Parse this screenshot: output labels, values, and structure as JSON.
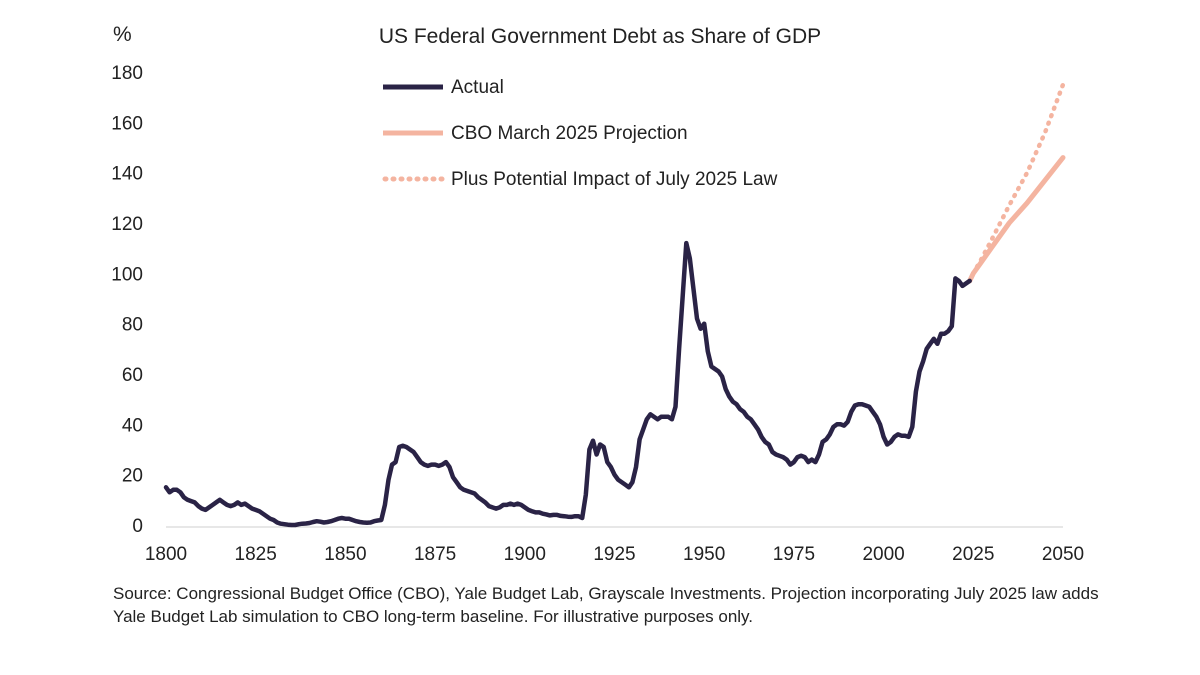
{
  "chart_data": {
    "type": "line",
    "title": "US Federal Government Debt as Share of GDP",
    "unit_label": "%",
    "xlabel": "",
    "ylabel": "",
    "xlim": [
      1800,
      2050
    ],
    "ylim": [
      0,
      180
    ],
    "x_ticks": [
      1800,
      1825,
      1850,
      1875,
      1900,
      1925,
      1950,
      1975,
      2000,
      2025,
      2050
    ],
    "y_ticks": [
      0,
      20,
      40,
      60,
      80,
      100,
      120,
      140,
      160,
      180
    ],
    "grid": false,
    "legend_position": "top-center",
    "series": [
      {
        "name": "Actual",
        "style": "solid",
        "color": "#2a2346",
        "points": [
          [
            1800,
            15
          ],
          [
            1801,
            13
          ],
          [
            1802,
            14
          ],
          [
            1803,
            14
          ],
          [
            1804,
            13
          ],
          [
            1805,
            11
          ],
          [
            1806,
            10
          ],
          [
            1807,
            9.5
          ],
          [
            1808,
            9
          ],
          [
            1809,
            7.5
          ],
          [
            1810,
            6.5
          ],
          [
            1811,
            6
          ],
          [
            1812,
            7
          ],
          [
            1813,
            8
          ],
          [
            1814,
            9
          ],
          [
            1815,
            10
          ],
          [
            1816,
            9
          ],
          [
            1817,
            8
          ],
          [
            1818,
            7.5
          ],
          [
            1819,
            8
          ],
          [
            1820,
            9
          ],
          [
            1821,
            8
          ],
          [
            1822,
            8.5
          ],
          [
            1823,
            7.5
          ],
          [
            1824,
            6.5
          ],
          [
            1825,
            6
          ],
          [
            1826,
            5.5
          ],
          [
            1827,
            4.5
          ],
          [
            1828,
            3.5
          ],
          [
            1829,
            2.5
          ],
          [
            1830,
            2
          ],
          [
            1831,
            1
          ],
          [
            1832,
            0.5
          ],
          [
            1833,
            0.3
          ],
          [
            1834,
            0.1
          ],
          [
            1835,
            0
          ],
          [
            1836,
            0
          ],
          [
            1837,
            0.3
          ],
          [
            1838,
            0.5
          ],
          [
            1839,
            0.6
          ],
          [
            1840,
            0.8
          ],
          [
            1841,
            1.2
          ],
          [
            1842,
            1.5
          ],
          [
            1843,
            1.3
          ],
          [
            1844,
            1
          ],
          [
            1845,
            1.2
          ],
          [
            1846,
            1.5
          ],
          [
            1847,
            2
          ],
          [
            1848,
            2.5
          ],
          [
            1849,
            2.8
          ],
          [
            1850,
            2.5
          ],
          [
            1851,
            2.5
          ],
          [
            1852,
            2
          ],
          [
            1853,
            1.5
          ],
          [
            1854,
            1.2
          ],
          [
            1855,
            1
          ],
          [
            1856,
            0.9
          ],
          [
            1857,
            1
          ],
          [
            1858,
            1.5
          ],
          [
            1859,
            1.8
          ],
          [
            1860,
            2
          ],
          [
            1861,
            8
          ],
          [
            1862,
            18
          ],
          [
            1863,
            24
          ],
          [
            1864,
            25
          ],
          [
            1865,
            31
          ],
          [
            1866,
            31.5
          ],
          [
            1867,
            31
          ],
          [
            1868,
            30
          ],
          [
            1869,
            29
          ],
          [
            1870,
            27
          ],
          [
            1871,
            25
          ],
          [
            1872,
            24
          ],
          [
            1873,
            23.5
          ],
          [
            1874,
            24
          ],
          [
            1875,
            24
          ],
          [
            1876,
            23.5
          ],
          [
            1877,
            24
          ],
          [
            1878,
            25
          ],
          [
            1879,
            23
          ],
          [
            1880,
            19
          ],
          [
            1881,
            17
          ],
          [
            1882,
            15
          ],
          [
            1883,
            14
          ],
          [
            1884,
            13.5
          ],
          [
            1885,
            13
          ],
          [
            1886,
            12.5
          ],
          [
            1887,
            11
          ],
          [
            1888,
            10
          ],
          [
            1889,
            9
          ],
          [
            1890,
            7.5
          ],
          [
            1891,
            7
          ],
          [
            1892,
            6.5
          ],
          [
            1893,
            7
          ],
          [
            1894,
            8
          ],
          [
            1895,
            8
          ],
          [
            1896,
            8.5
          ],
          [
            1897,
            8
          ],
          [
            1898,
            8.5
          ],
          [
            1899,
            8
          ],
          [
            1900,
            7
          ],
          [
            1901,
            6
          ],
          [
            1902,
            5.5
          ],
          [
            1903,
            5
          ],
          [
            1904,
            5
          ],
          [
            1905,
            4.5
          ],
          [
            1906,
            4.2
          ],
          [
            1907,
            3.8
          ],
          [
            1908,
            4
          ],
          [
            1909,
            4
          ],
          [
            1910,
            3.6
          ],
          [
            1911,
            3.5
          ],
          [
            1912,
            3.3
          ],
          [
            1913,
            3.2
          ],
          [
            1914,
            3.5
          ],
          [
            1915,
            3.5
          ],
          [
            1916,
            2.8
          ],
          [
            1917,
            12
          ],
          [
            1918,
            30
          ],
          [
            1919,
            33.5
          ],
          [
            1920,
            28
          ],
          [
            1921,
            32
          ],
          [
            1922,
            31
          ],
          [
            1923,
            25
          ],
          [
            1924,
            23
          ],
          [
            1925,
            20
          ],
          [
            1926,
            18
          ],
          [
            1927,
            17
          ],
          [
            1928,
            16
          ],
          [
            1929,
            15
          ],
          [
            1930,
            17
          ],
          [
            1931,
            23
          ],
          [
            1932,
            34
          ],
          [
            1933,
            38
          ],
          [
            1934,
            42
          ],
          [
            1935,
            44
          ],
          [
            1936,
            43
          ],
          [
            1937,
            42
          ],
          [
            1938,
            43
          ],
          [
            1939,
            43
          ],
          [
            1940,
            43
          ],
          [
            1941,
            42
          ],
          [
            1942,
            47
          ],
          [
            1943,
            70
          ],
          [
            1944,
            91
          ],
          [
            1945,
            112
          ],
          [
            1946,
            106
          ],
          [
            1947,
            94
          ],
          [
            1948,
            82
          ],
          [
            1949,
            78
          ],
          [
            1950,
            80
          ],
          [
            1951,
            69
          ],
          [
            1952,
            63
          ],
          [
            1953,
            62
          ],
          [
            1954,
            61
          ],
          [
            1955,
            59
          ],
          [
            1956,
            54
          ],
          [
            1957,
            51
          ],
          [
            1958,
            49
          ],
          [
            1959,
            48
          ],
          [
            1960,
            46
          ],
          [
            1961,
            45
          ],
          [
            1962,
            43
          ],
          [
            1963,
            42
          ],
          [
            1964,
            40
          ],
          [
            1965,
            38
          ],
          [
            1966,
            35
          ],
          [
            1967,
            33
          ],
          [
            1968,
            32
          ],
          [
            1969,
            29
          ],
          [
            1970,
            28
          ],
          [
            1971,
            27.5
          ],
          [
            1972,
            27
          ],
          [
            1973,
            26
          ],
          [
            1974,
            24
          ],
          [
            1975,
            25
          ],
          [
            1976,
            27
          ],
          [
            1977,
            27.5
          ],
          [
            1978,
            27
          ],
          [
            1979,
            25
          ],
          [
            1980,
            26
          ],
          [
            1981,
            25
          ],
          [
            1982,
            28
          ],
          [
            1983,
            33
          ],
          [
            1984,
            34
          ],
          [
            1985,
            36
          ],
          [
            1986,
            39
          ],
          [
            1987,
            40
          ],
          [
            1988,
            40
          ],
          [
            1989,
            39.5
          ],
          [
            1990,
            41
          ],
          [
            1991,
            45
          ],
          [
            1992,
            47.5
          ],
          [
            1993,
            48
          ],
          [
            1994,
            48
          ],
          [
            1995,
            47.5
          ],
          [
            1996,
            47
          ],
          [
            1997,
            45
          ],
          [
            1998,
            43
          ],
          [
            1999,
            40
          ],
          [
            2000,
            35
          ],
          [
            2001,
            32
          ],
          [
            2002,
            33
          ],
          [
            2003,
            35
          ],
          [
            2004,
            36
          ],
          [
            2005,
            35.5
          ],
          [
            2006,
            35.5
          ],
          [
            2007,
            35
          ],
          [
            2008,
            39
          ],
          [
            2009,
            53
          ],
          [
            2010,
            61
          ],
          [
            2011,
            65
          ],
          [
            2012,
            70
          ],
          [
            2013,
            72
          ],
          [
            2014,
            74
          ],
          [
            2015,
            72
          ],
          [
            2016,
            76
          ],
          [
            2017,
            76
          ],
          [
            2018,
            77
          ],
          [
            2019,
            79
          ],
          [
            2020,
            98
          ],
          [
            2021,
            97
          ],
          [
            2022,
            95
          ],
          [
            2023,
            96
          ],
          [
            2024,
            97
          ]
        ]
      },
      {
        "name": "CBO March 2025 Projection",
        "style": "solid",
        "color": "#f4b4a0",
        "points": [
          [
            2024,
            97
          ],
          [
            2025,
            100
          ],
          [
            2027,
            104
          ],
          [
            2030,
            110
          ],
          [
            2035,
            120
          ],
          [
            2040,
            128
          ],
          [
            2045,
            137
          ],
          [
            2050,
            146
          ]
        ]
      },
      {
        "name": "Plus Potential Impact of July 2025 Law",
        "style": "dotted",
        "color": "#f4b4a0",
        "points": [
          [
            2024,
            97
          ],
          [
            2025,
            100
          ],
          [
            2027,
            105
          ],
          [
            2030,
            113
          ],
          [
            2035,
            127
          ],
          [
            2040,
            140
          ],
          [
            2045,
            156
          ],
          [
            2050,
            175
          ]
        ]
      }
    ]
  },
  "source_note": "Source: Congressional Budget Office (CBO), Yale Budget Lab, Grayscale Investments. Projection incorporating July 2025 law adds Yale Budget Lab simulation to CBO long-term baseline. For illustrative purposes only."
}
